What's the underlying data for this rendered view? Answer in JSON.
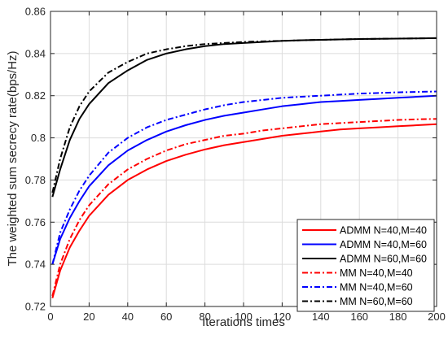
{
  "chart_data": {
    "type": "line",
    "title": "",
    "xlabel": "Iterations times",
    "ylabel": "The weighted sum secrecy rate(bps/Hz)",
    "xlim": [
      0,
      200
    ],
    "ylim": [
      0.72,
      0.86
    ],
    "xticks": [
      0,
      20,
      40,
      60,
      80,
      100,
      120,
      140,
      160,
      180,
      200
    ],
    "yticks": [
      0.72,
      0.74,
      0.76,
      0.78,
      0.8,
      0.82,
      0.84,
      0.86
    ],
    "ytick_labels": [
      "0.72",
      "0.74",
      "0.76",
      "0.78",
      "0.8",
      "0.82",
      "0.84",
      "0.86"
    ],
    "grid": true,
    "legend_position": "bottom-right",
    "x": [
      1,
      5,
      10,
      15,
      20,
      30,
      40,
      50,
      60,
      70,
      80,
      90,
      100,
      110,
      120,
      130,
      140,
      150,
      160,
      170,
      180,
      190,
      200
    ],
    "series": [
      {
        "name": "ADMM N=40,M=40",
        "color": "#ff0000",
        "dash": "solid",
        "values": [
          0.724,
          0.737,
          0.748,
          0.756,
          0.763,
          0.773,
          0.78,
          0.785,
          0.789,
          0.792,
          0.7945,
          0.7965,
          0.798,
          0.7995,
          0.801,
          0.802,
          0.803,
          0.804,
          0.8045,
          0.805,
          0.8055,
          0.806,
          0.8065
        ]
      },
      {
        "name": "ADMM N=40,M=60",
        "color": "#0000ff",
        "dash": "solid",
        "values": [
          0.74,
          0.752,
          0.762,
          0.77,
          0.777,
          0.787,
          0.794,
          0.799,
          0.803,
          0.806,
          0.8085,
          0.8105,
          0.812,
          0.8135,
          0.815,
          0.816,
          0.817,
          0.8175,
          0.818,
          0.8185,
          0.819,
          0.8195,
          0.82
        ]
      },
      {
        "name": "ADMM N=60,M=60",
        "color": "#000000",
        "dash": "solid",
        "values": [
          0.772,
          0.785,
          0.799,
          0.809,
          0.816,
          0.826,
          0.832,
          0.837,
          0.84,
          0.842,
          0.8435,
          0.8445,
          0.845,
          0.8455,
          0.846,
          0.8463,
          0.8465,
          0.8467,
          0.8469,
          0.847,
          0.8471,
          0.8472,
          0.8473
        ]
      },
      {
        "name": "MM N=40,M=40",
        "color": "#ff0000",
        "dash": "dashdot",
        "values": [
          0.725,
          0.74,
          0.752,
          0.761,
          0.768,
          0.778,
          0.785,
          0.79,
          0.794,
          0.797,
          0.799,
          0.801,
          0.802,
          0.8035,
          0.8045,
          0.8055,
          0.8065,
          0.807,
          0.8075,
          0.808,
          0.8085,
          0.8088,
          0.809
        ]
      },
      {
        "name": "MM N=40,M=60",
        "color": "#0000ff",
        "dash": "dashdot",
        "values": [
          0.74,
          0.755,
          0.766,
          0.775,
          0.782,
          0.793,
          0.8,
          0.805,
          0.8085,
          0.811,
          0.8135,
          0.8155,
          0.817,
          0.818,
          0.819,
          0.8195,
          0.82,
          0.8205,
          0.821,
          0.8213,
          0.8216,
          0.8218,
          0.822
        ]
      },
      {
        "name": "MM N=60,M=60",
        "color": "#000000",
        "dash": "dashdot",
        "values": [
          0.774,
          0.79,
          0.805,
          0.815,
          0.822,
          0.831,
          0.836,
          0.84,
          0.842,
          0.8435,
          0.8445,
          0.845,
          0.8455,
          0.8458,
          0.846,
          0.8463,
          0.8465,
          0.8467,
          0.8469,
          0.847,
          0.8471,
          0.8472,
          0.8473
        ]
      }
    ]
  }
}
